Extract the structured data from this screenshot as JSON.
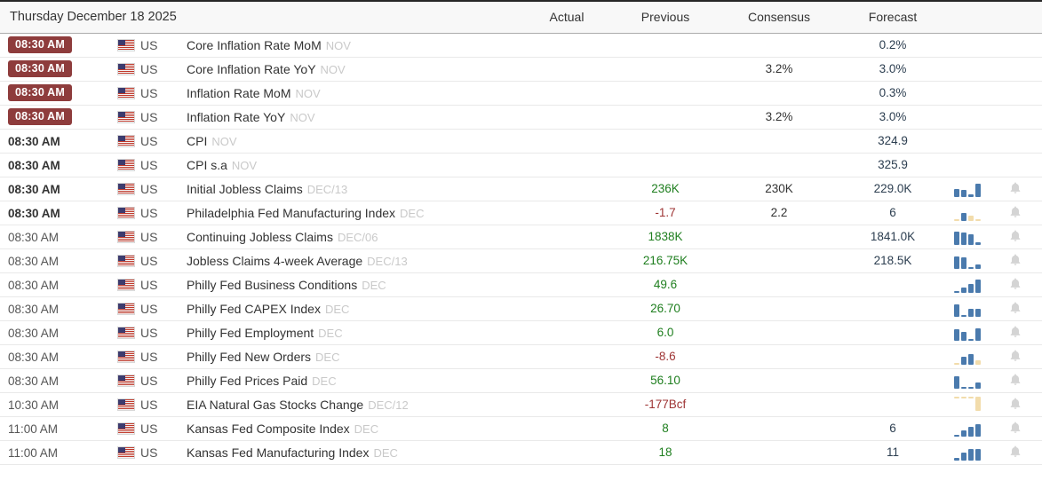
{
  "header": {
    "date_label": "Thursday December 18 2025",
    "columns": [
      "Actual",
      "Previous",
      "Consensus",
      "Forecast"
    ]
  },
  "colors": {
    "badge_bg": "#8e3c3c",
    "value_green": "#1e7e1e",
    "value_red": "#9e3434",
    "forecast_navy": "#2c3e50",
    "bar_blue": "#4a7aad",
    "bar_tan": "#f2dcab",
    "bell_grey": "#d4d4d4"
  },
  "icons": {
    "flag": "us-flag-icon",
    "bell": "bell-icon",
    "chart": "mini-bar-chart-icon"
  },
  "rows": [
    {
      "time": "08:30 AM",
      "time_style": "badge",
      "country": "US",
      "event": "Core Inflation Rate MoM",
      "tag": "NOV",
      "actual": "",
      "previous": "",
      "previous_color": null,
      "consensus": "",
      "forecast": "0.2%",
      "chart": null,
      "bell": false
    },
    {
      "time": "08:30 AM",
      "time_style": "badge",
      "country": "US",
      "event": "Core Inflation Rate YoY",
      "tag": "NOV",
      "actual": "",
      "previous": "",
      "previous_color": null,
      "consensus": "3.2%",
      "forecast": "3.0%",
      "chart": null,
      "bell": false
    },
    {
      "time": "08:30 AM",
      "time_style": "badge",
      "country": "US",
      "event": "Inflation Rate MoM",
      "tag": "NOV",
      "actual": "",
      "previous": "",
      "previous_color": null,
      "consensus": "",
      "forecast": "0.3%",
      "chart": null,
      "bell": false
    },
    {
      "time": "08:30 AM",
      "time_style": "badge",
      "country": "US",
      "event": "Inflation Rate YoY",
      "tag": "NOV",
      "actual": "",
      "previous": "",
      "previous_color": null,
      "consensus": "3.2%",
      "forecast": "3.0%",
      "chart": null,
      "bell": false
    },
    {
      "time": "08:30 AM",
      "time_style": "bold",
      "country": "US",
      "event": "CPI",
      "tag": "NOV",
      "actual": "",
      "previous": "",
      "previous_color": null,
      "consensus": "",
      "forecast": "324.9",
      "chart": null,
      "bell": false
    },
    {
      "time": "08:30 AM",
      "time_style": "bold",
      "country": "US",
      "event": "CPI s.a",
      "tag": "NOV",
      "actual": "",
      "previous": "",
      "previous_color": null,
      "consensus": "",
      "forecast": "325.9",
      "chart": null,
      "bell": false
    },
    {
      "time": "08:30 AM",
      "time_style": "bold",
      "country": "US",
      "event": "Initial Jobless Claims",
      "tag": "DEC/13",
      "actual": "",
      "previous": "236K",
      "previous_color": "green",
      "consensus": "230K",
      "forecast": "229.0K",
      "chart": {
        "align": "bottom",
        "bars": [
          {
            "h": 9,
            "c": "b"
          },
          {
            "h": 8,
            "c": "b"
          },
          {
            "h": 3,
            "c": "b"
          },
          {
            "h": 15,
            "c": "b"
          }
        ]
      },
      "bell": true
    },
    {
      "time": "08:30 AM",
      "time_style": "bold",
      "country": "US",
      "event": "Philadelphia Fed Manufacturing Index",
      "tag": "DEC",
      "actual": "",
      "previous": "-1.7",
      "previous_color": "red",
      "consensus": "2.2",
      "forecast": "6",
      "chart": {
        "align": "bottom",
        "bars": [
          {
            "h": 2,
            "c": "t"
          },
          {
            "h": 9,
            "c": "b"
          },
          {
            "h": 6,
            "c": "t"
          },
          {
            "h": 2,
            "c": "t"
          }
        ]
      },
      "bell": true
    },
    {
      "time": "08:30 AM",
      "time_style": "normal",
      "country": "US",
      "event": "Continuing Jobless Claims",
      "tag": "DEC/06",
      "actual": "",
      "previous": "1838K",
      "previous_color": "green",
      "consensus": "",
      "forecast": "1841.0K",
      "chart": {
        "align": "bottom",
        "bars": [
          {
            "h": 15,
            "c": "b"
          },
          {
            "h": 14,
            "c": "b"
          },
          {
            "h": 12,
            "c": "b"
          },
          {
            "h": 3,
            "c": "b"
          }
        ]
      },
      "bell": true
    },
    {
      "time": "08:30 AM",
      "time_style": "normal",
      "country": "US",
      "event": "Jobless Claims 4-week Average",
      "tag": "DEC/13",
      "actual": "",
      "previous": "216.75K",
      "previous_color": "green",
      "consensus": "",
      "forecast": "218.5K",
      "chart": {
        "align": "bottom",
        "bars": [
          {
            "h": 14,
            "c": "b"
          },
          {
            "h": 13,
            "c": "b"
          },
          {
            "h": 2,
            "c": "b"
          },
          {
            "h": 5,
            "c": "b"
          }
        ]
      },
      "bell": true
    },
    {
      "time": "08:30 AM",
      "time_style": "normal",
      "country": "US",
      "event": "Philly Fed Business Conditions",
      "tag": "DEC",
      "actual": "",
      "previous": "49.6",
      "previous_color": "green",
      "consensus": "",
      "forecast": "",
      "chart": {
        "align": "bottom",
        "bars": [
          {
            "h": 2,
            "c": "b"
          },
          {
            "h": 6,
            "c": "b"
          },
          {
            "h": 10,
            "c": "b"
          },
          {
            "h": 15,
            "c": "b"
          }
        ]
      },
      "bell": true
    },
    {
      "time": "08:30 AM",
      "time_style": "normal",
      "country": "US",
      "event": "Philly Fed CAPEX Index",
      "tag": "DEC",
      "actual": "",
      "previous": "26.70",
      "previous_color": "green",
      "consensus": "",
      "forecast": "",
      "chart": {
        "align": "bottom",
        "bars": [
          {
            "h": 14,
            "c": "b"
          },
          {
            "h": 2,
            "c": "b"
          },
          {
            "h": 9,
            "c": "b"
          },
          {
            "h": 9,
            "c": "b"
          }
        ]
      },
      "bell": true
    },
    {
      "time": "08:30 AM",
      "time_style": "normal",
      "country": "US",
      "event": "Philly Fed Employment",
      "tag": "DEC",
      "actual": "",
      "previous": "6.0",
      "previous_color": "green",
      "consensus": "",
      "forecast": "",
      "chart": {
        "align": "bottom",
        "bars": [
          {
            "h": 13,
            "c": "b"
          },
          {
            "h": 10,
            "c": "b"
          },
          {
            "h": 2,
            "c": "b"
          },
          {
            "h": 14,
            "c": "b"
          }
        ]
      },
      "bell": true
    },
    {
      "time": "08:30 AM",
      "time_style": "normal",
      "country": "US",
      "event": "Philly Fed New Orders",
      "tag": "DEC",
      "actual": "",
      "previous": "-8.6",
      "previous_color": "red",
      "consensus": "",
      "forecast": "",
      "chart": {
        "align": "bottom",
        "bars": [
          {
            "h": 2,
            "c": "t"
          },
          {
            "h": 9,
            "c": "b"
          },
          {
            "h": 12,
            "c": "b"
          },
          {
            "h": 5,
            "c": "t"
          }
        ]
      },
      "bell": true
    },
    {
      "time": "08:30 AM",
      "time_style": "normal",
      "country": "US",
      "event": "Philly Fed Prices Paid",
      "tag": "DEC",
      "actual": "",
      "previous": "56.10",
      "previous_color": "green",
      "consensus": "",
      "forecast": "",
      "chart": {
        "align": "bottom",
        "bars": [
          {
            "h": 14,
            "c": "b"
          },
          {
            "h": 2,
            "c": "b"
          },
          {
            "h": 2,
            "c": "b"
          },
          {
            "h": 7,
            "c": "b"
          }
        ]
      },
      "bell": true
    },
    {
      "time": "10:30 AM",
      "time_style": "normal",
      "country": "US",
      "event": "EIA Natural Gas Stocks Change",
      "tag": "DEC/12",
      "actual": "",
      "previous": "-177Bcf",
      "previous_color": "red",
      "consensus": "",
      "forecast": "",
      "chart": {
        "align": "top",
        "bars": [
          {
            "h": 2,
            "c": "t"
          },
          {
            "h": 2,
            "c": "t"
          },
          {
            "h": 2,
            "c": "t"
          },
          {
            "h": 16,
            "c": "t"
          }
        ]
      },
      "bell": true
    },
    {
      "time": "11:00 AM",
      "time_style": "normal",
      "country": "US",
      "event": "Kansas Fed Composite Index",
      "tag": "DEC",
      "actual": "",
      "previous": "8",
      "previous_color": "green",
      "consensus": "",
      "forecast": "6",
      "chart": {
        "align": "bottom",
        "bars": [
          {
            "h": 2,
            "c": "b"
          },
          {
            "h": 7,
            "c": "b"
          },
          {
            "h": 11,
            "c": "b"
          },
          {
            "h": 14,
            "c": "b"
          }
        ]
      },
      "bell": true
    },
    {
      "time": "11:00 AM",
      "time_style": "normal",
      "country": "US",
      "event": "Kansas Fed Manufacturing Index",
      "tag": "DEC",
      "actual": "",
      "previous": "18",
      "previous_color": "green",
      "consensus": "",
      "forecast": "11",
      "chart": {
        "align": "bottom",
        "bars": [
          {
            "h": 3,
            "c": "b"
          },
          {
            "h": 9,
            "c": "b"
          },
          {
            "h": 13,
            "c": "b"
          },
          {
            "h": 13,
            "c": "b"
          }
        ]
      },
      "bell": true
    }
  ]
}
